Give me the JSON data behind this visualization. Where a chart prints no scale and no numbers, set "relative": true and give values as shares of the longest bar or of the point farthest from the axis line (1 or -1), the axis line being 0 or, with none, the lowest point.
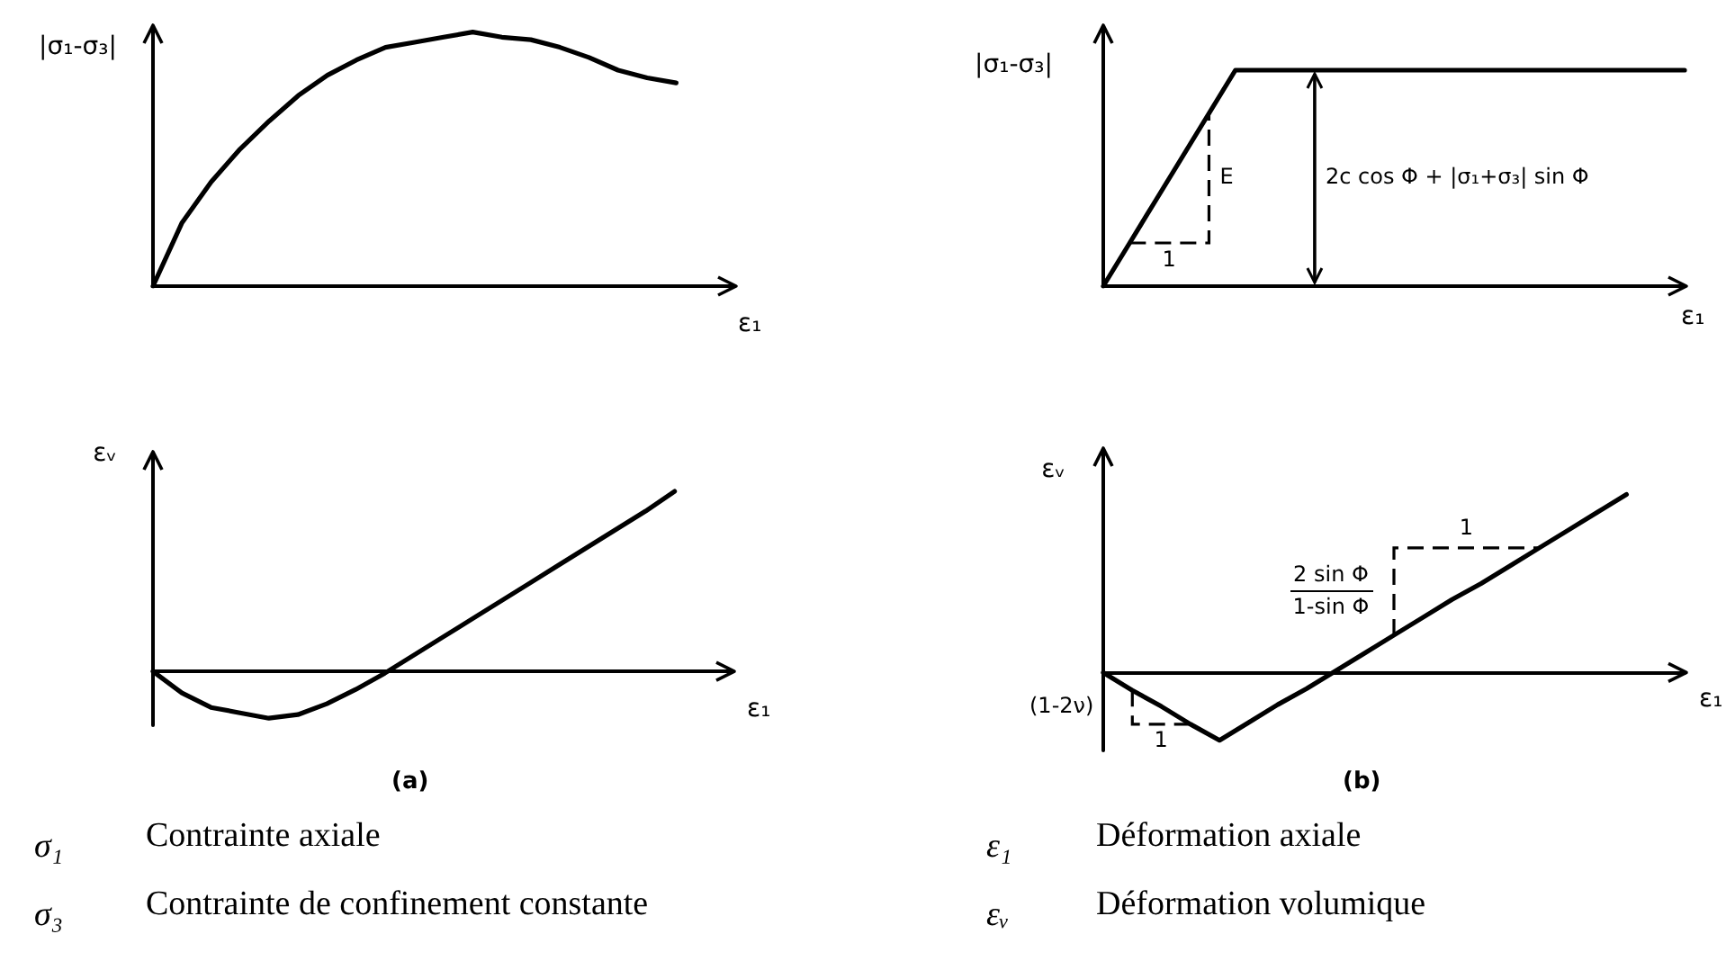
{
  "chart_data": [
    {
      "type": "line",
      "relative": true,
      "ylabel": "|σ₁-σ₃|",
      "xlabel": "ε₁",
      "categories": [
        null,
        null,
        null,
        null,
        null,
        null,
        null,
        null,
        null,
        null,
        null,
        null,
        null,
        null,
        null,
        null,
        null,
        null,
        null,
        null,
        null
      ],
      "values": [
        0,
        0.25,
        0.41,
        0.54,
        0.65,
        0.75,
        0.83,
        0.89,
        0.94,
        0.96,
        0.98,
        1,
        0.98,
        0.97,
        0.94,
        0.9,
        0.85,
        0.82,
        0.8,
        null,
        null
      ],
      "color": "#000000",
      "marker": "none",
      "line_style": "solid"
    },
    {
      "type": "line",
      "relative": true,
      "ylabel": "|σ₁-σ₃|",
      "xlabel": "ε₁",
      "categories": [
        null,
        null,
        null,
        null,
        null,
        null,
        null,
        null,
        null,
        null,
        null,
        null,
        null,
        null,
        null,
        null,
        null,
        null,
        null,
        null,
        null,
        null,
        null
      ],
      "values": [
        0,
        0.2,
        0.4,
        0.6,
        0.8,
        1,
        1,
        1,
        1,
        1,
        1,
        1,
        1,
        1,
        1,
        1,
        1,
        1,
        1,
        1,
        1,
        1,
        1
      ],
      "color": "#000000",
      "marker": "none",
      "line_style": "solid",
      "annotations": [
        "E",
        "1",
        "2c cos Φ + |σ₁+σ₃| sin Φ"
      ]
    },
    {
      "type": "line",
      "relative": true,
      "ylabel": "εᵥ",
      "xlabel": "ε₁",
      "categories": [
        null,
        null,
        null,
        null,
        null,
        null,
        null,
        null,
        null,
        null,
        null,
        null,
        null,
        null,
        null,
        null,
        null,
        null,
        null,
        null,
        null
      ],
      "values": [
        0,
        -0.12,
        -0.2,
        -0.23,
        -0.26,
        -0.24,
        -0.18,
        -0.1,
        -0.01,
        0.09,
        0.19,
        0.29,
        0.39,
        0.49,
        0.59,
        0.69,
        0.79,
        0.89,
        1,
        null,
        null
      ],
      "color": "#000000",
      "marker": "none",
      "line_style": "solid",
      "annotations": [
        "(a)"
      ]
    },
    {
      "type": "line",
      "relative": true,
      "ylabel": "εᵥ",
      "xlabel": "ε₁",
      "categories": [
        null,
        null,
        null,
        null,
        null,
        null,
        null,
        null,
        null,
        null,
        null,
        null,
        null,
        null,
        null,
        null,
        null,
        null,
        null,
        null,
        null
      ],
      "values": [
        0,
        -0.1,
        -0.19,
        -0.29,
        -0.38,
        -0.28,
        -0.18,
        -0.09,
        0.01,
        0.11,
        0.21,
        0.31,
        0.41,
        0.5,
        0.6,
        0.7,
        0.8,
        0.9,
        1,
        null,
        null
      ],
      "color": "#000000",
      "marker": "none",
      "line_style": "solid",
      "annotations": [
        "(1-2ν)",
        "1",
        "2 sin Φ",
        "1-sin Φ",
        "1",
        "(b)"
      ]
    },
    {
      "type": "other",
      "annotations": [
        "σ₁",
        "Contrainte axiale",
        "ε₁",
        "Déformation axiale",
        "σ₃",
        "Contrainte de confinement constante",
        "εᵥ",
        "Déformation volumique"
      ]
    }
  ]
}
